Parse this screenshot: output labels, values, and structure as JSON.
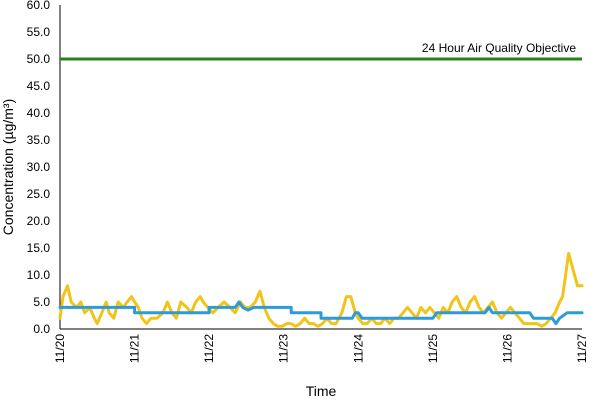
{
  "chart_data": {
    "type": "line",
    "title": "",
    "xlabel": "Time",
    "ylabel": "Concentration (µg/m³)",
    "ylim": [
      0,
      60
    ],
    "yticks": [
      "0.0",
      "5.0",
      "10.0",
      "15.0",
      "20.0",
      "25.0",
      "30.0",
      "35.0",
      "40.0",
      "45.0",
      "50.0",
      "55.0",
      "60.0"
    ],
    "xticks": [
      "11/20",
      "11/21",
      "11/22",
      "11/23",
      "11/24",
      "11/25",
      "11/26",
      "11/27"
    ],
    "grid": false,
    "annotation": "24 Hour Air Quality Objective",
    "colors": {
      "objective": "#2e7d1e",
      "yellow": "#f0c419",
      "blue": "#2b9bd9"
    },
    "objective": {
      "value": 50
    },
    "series": [
      {
        "color": "#f0c419",
        "points": [
          [
            0.0,
            2
          ],
          [
            0.04,
            6
          ],
          [
            0.1,
            8
          ],
          [
            0.15,
            5
          ],
          [
            0.22,
            4
          ],
          [
            0.28,
            5
          ],
          [
            0.33,
            3
          ],
          [
            0.4,
            4
          ],
          [
            0.46,
            2
          ],
          [
            0.5,
            1
          ],
          [
            0.56,
            3
          ],
          [
            0.62,
            5
          ],
          [
            0.66,
            3
          ],
          [
            0.72,
            2
          ],
          [
            0.78,
            5
          ],
          [
            0.85,
            4
          ],
          [
            0.9,
            5
          ],
          [
            0.96,
            6
          ],
          [
            1.0,
            5
          ],
          [
            1.05,
            4
          ],
          [
            1.1,
            2
          ],
          [
            1.16,
            1
          ],
          [
            1.22,
            2
          ],
          [
            1.3,
            2
          ],
          [
            1.38,
            3
          ],
          [
            1.44,
            5
          ],
          [
            1.5,
            3
          ],
          [
            1.56,
            2
          ],
          [
            1.62,
            5
          ],
          [
            1.7,
            4
          ],
          [
            1.76,
            3
          ],
          [
            1.82,
            5
          ],
          [
            1.88,
            6
          ],
          [
            1.92,
            5
          ],
          [
            1.98,
            4
          ],
          [
            2.05,
            3
          ],
          [
            2.12,
            4
          ],
          [
            2.2,
            5
          ],
          [
            2.28,
            4
          ],
          [
            2.35,
            3
          ],
          [
            2.42,
            5
          ],
          [
            2.48,
            4
          ],
          [
            2.55,
            4
          ],
          [
            2.62,
            5
          ],
          [
            2.68,
            7
          ],
          [
            2.74,
            4
          ],
          [
            2.8,
            2
          ],
          [
            2.86,
            1
          ],
          [
            2.92,
            0.5
          ],
          [
            2.98,
            0.5
          ],
          [
            3.04,
            1
          ],
          [
            3.1,
            1
          ],
          [
            3.16,
            0.5
          ],
          [
            3.22,
            1
          ],
          [
            3.28,
            2
          ],
          [
            3.34,
            1
          ],
          [
            3.4,
            1
          ],
          [
            3.46,
            0.5
          ],
          [
            3.52,
            1
          ],
          [
            3.58,
            2
          ],
          [
            3.64,
            1
          ],
          [
            3.7,
            1
          ],
          [
            3.78,
            3
          ],
          [
            3.84,
            6
          ],
          [
            3.9,
            6
          ],
          [
            3.96,
            3
          ],
          [
            4.0,
            2
          ],
          [
            4.06,
            1
          ],
          [
            4.12,
            1
          ],
          [
            4.18,
            2
          ],
          [
            4.24,
            1
          ],
          [
            4.3,
            1
          ],
          [
            4.36,
            2
          ],
          [
            4.42,
            1
          ],
          [
            4.48,
            2
          ],
          [
            4.54,
            2
          ],
          [
            4.6,
            3
          ],
          [
            4.66,
            4
          ],
          [
            4.72,
            3
          ],
          [
            4.78,
            2
          ],
          [
            4.84,
            4
          ],
          [
            4.9,
            3
          ],
          [
            4.96,
            4
          ],
          [
            5.02,
            3
          ],
          [
            5.08,
            2
          ],
          [
            5.14,
            4
          ],
          [
            5.2,
            3
          ],
          [
            5.26,
            5
          ],
          [
            5.32,
            6
          ],
          [
            5.38,
            4
          ],
          [
            5.44,
            3
          ],
          [
            5.5,
            5
          ],
          [
            5.56,
            6
          ],
          [
            5.62,
            4
          ],
          [
            5.68,
            3
          ],
          [
            5.74,
            4
          ],
          [
            5.8,
            5
          ],
          [
            5.86,
            3
          ],
          [
            5.92,
            2
          ],
          [
            5.98,
            3
          ],
          [
            6.04,
            4
          ],
          [
            6.1,
            3
          ],
          [
            6.16,
            2
          ],
          [
            6.22,
            1
          ],
          [
            6.28,
            1
          ],
          [
            6.34,
            1
          ],
          [
            6.4,
            1
          ],
          [
            6.46,
            0.5
          ],
          [
            6.52,
            1
          ],
          [
            6.58,
            2
          ],
          [
            6.64,
            3
          ],
          [
            6.7,
            5
          ],
          [
            6.74,
            6
          ],
          [
            6.78,
            10
          ],
          [
            6.82,
            14
          ],
          [
            6.88,
            11
          ],
          [
            6.94,
            8
          ],
          [
            7.0,
            8
          ]
        ]
      },
      {
        "color": "#2b9bd9",
        "points": [
          [
            0.0,
            4
          ],
          [
            1.0,
            4
          ],
          [
            1.0,
            3
          ],
          [
            2.0,
            3
          ],
          [
            2.0,
            4
          ],
          [
            2.35,
            4
          ],
          [
            2.4,
            5
          ],
          [
            2.45,
            4
          ],
          [
            2.52,
            3.5
          ],
          [
            2.6,
            4
          ],
          [
            3.1,
            4
          ],
          [
            3.1,
            3
          ],
          [
            3.5,
            3
          ],
          [
            3.5,
            2
          ],
          [
            3.92,
            2
          ],
          [
            3.96,
            3
          ],
          [
            4.0,
            3
          ],
          [
            4.05,
            2
          ],
          [
            5.0,
            2
          ],
          [
            5.05,
            3
          ],
          [
            5.7,
            3
          ],
          [
            5.75,
            4
          ],
          [
            5.8,
            3
          ],
          [
            6.3,
            3
          ],
          [
            6.35,
            2
          ],
          [
            6.6,
            2
          ],
          [
            6.65,
            1
          ],
          [
            6.7,
            2
          ],
          [
            6.8,
            3
          ],
          [
            7.0,
            3
          ]
        ]
      }
    ]
  }
}
